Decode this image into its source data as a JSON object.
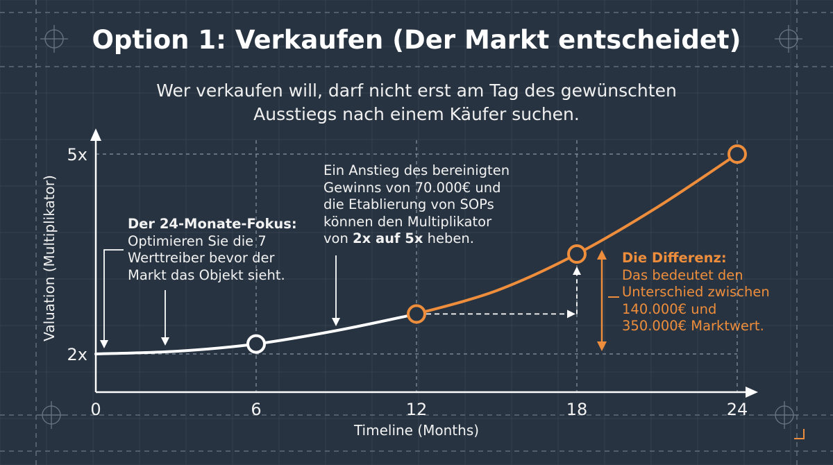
{
  "title": "Option 1: Verkaufen (Der Markt entscheidet)",
  "subtitle": [
    "Wer verkaufen will, darf nicht erst am Tag des gewünschten",
    "Ausstiegs nach einem Käufer suchen."
  ],
  "colors": {
    "background": "#273340",
    "line_white": "#ffffff",
    "accent_orange": "#ee8e3c",
    "grid": "#8a96a2"
  },
  "annotations": {
    "focus": {
      "bold": "Der 24-Monate-Fokus:",
      "lines": [
        "Optimieren Sie die 7",
        "Werttreiber bevor der",
        "Markt das Objekt sieht."
      ]
    },
    "rise": {
      "lines": [
        "Ein Anstieg des bereinigten",
        "Gewinns von 70.000€ und",
        "die Etablierung von SOPs",
        "können den Multiplikator"
      ],
      "last_pre": "von ",
      "last_bold": "2x auf 5x",
      "last_post": " heben."
    },
    "difference": {
      "bold": "Die Differenz:",
      "lines": [
        "Das bedeutet den",
        "Unterschied zwischen",
        "140.000€ und",
        "350.000€ Marktwert."
      ]
    }
  },
  "chart_data": {
    "type": "line",
    "xlabel": "Timeline (Months)",
    "ylabel": "Valuation (Multiplikator)",
    "xticks": [
      "0",
      "6",
      "12",
      "18",
      "24"
    ],
    "yticks": [
      "2x",
      "5x"
    ],
    "xlim": [
      0,
      24
    ],
    "ylim": [
      2,
      5
    ],
    "series": [
      {
        "color": "#ffffff",
        "x": [
          0,
          3,
          6,
          9,
          12
        ],
        "y": [
          2.0,
          2.04,
          2.15,
          2.35,
          2.6
        ]
      },
      {
        "color": "#ee8e3c",
        "x": [
          12,
          15,
          18,
          21,
          24
        ],
        "y": [
          2.6,
          2.95,
          3.5,
          4.2,
          5.0
        ]
      }
    ],
    "markers": [
      {
        "x": 6,
        "y": 2.15,
        "color": "#ffffff"
      },
      {
        "x": 12,
        "y": 2.6,
        "color": "#ee8e3c"
      },
      {
        "x": 18,
        "y": 3.5,
        "color": "#ee8e3c"
      },
      {
        "x": 24,
        "y": 5.0,
        "color": "#ee8e3c"
      }
    ],
    "grid": true
  }
}
